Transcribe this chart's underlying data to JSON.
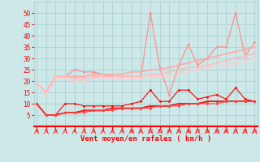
{
  "x": [
    0,
    1,
    2,
    3,
    4,
    5,
    6,
    7,
    8,
    9,
    10,
    11,
    12,
    13,
    14,
    15,
    16,
    17,
    18,
    19,
    20,
    21,
    22,
    23
  ],
  "series": [
    {
      "name": "gust_upper",
      "color": "#ff8888",
      "lw": 0.8,
      "marker": "D",
      "ms": 1.5,
      "values": [
        19,
        15,
        22,
        22,
        25,
        24,
        24,
        23,
        22,
        22,
        22,
        22,
        50,
        26,
        14,
        27,
        36,
        27,
        30,
        35,
        35,
        50,
        31,
        37
      ]
    },
    {
      "name": "trend_line1",
      "color": "#ffaaaa",
      "lw": 1.2,
      "marker": "D",
      "ms": 1.5,
      "values": [
        19,
        15,
        22,
        22,
        22,
        22,
        23,
        23,
        23,
        23,
        24,
        24,
        25,
        25,
        26,
        27,
        28,
        29,
        30,
        31,
        32,
        33,
        34,
        35
      ]
    },
    {
      "name": "trend_line2",
      "color": "#ffbbbb",
      "lw": 1.0,
      "marker": "D",
      "ms": 1.5,
      "values": [
        19,
        15,
        22,
        22,
        21,
        21,
        22,
        22,
        22,
        22,
        22,
        22,
        23,
        23,
        24,
        25,
        26,
        26,
        27,
        28,
        29,
        30,
        31,
        32
      ]
    },
    {
      "name": "trend_lower",
      "color": "#ffcccc",
      "lw": 0.9,
      "marker": "D",
      "ms": 1.5,
      "values": [
        19,
        14,
        21,
        21,
        20,
        20,
        21,
        21,
        21,
        21,
        21,
        21,
        22,
        22,
        22,
        23,
        24,
        25,
        26,
        27,
        27,
        28,
        29,
        30
      ]
    },
    {
      "name": "max_gust_red",
      "color": "#ff0000",
      "lw": 0.8,
      "marker": "D",
      "ms": 1.5,
      "values": [
        10,
        5,
        5,
        10,
        10,
        9,
        9,
        9,
        9,
        9,
        10,
        11,
        16,
        11,
        11,
        16,
        16,
        12,
        13,
        14,
        12,
        17,
        12,
        11
      ]
    },
    {
      "name": "mean_wind1",
      "color": "#cc0000",
      "lw": 1.2,
      "marker": "D",
      "ms": 1.5,
      "values": [
        10,
        5,
        5,
        6,
        6,
        7,
        7,
        7,
        8,
        8,
        8,
        8,
        9,
        9,
        9,
        10,
        10,
        10,
        11,
        11,
        11,
        11,
        11,
        11
      ]
    },
    {
      "name": "mean_wind2",
      "color": "#ff2222",
      "lw": 1.0,
      "marker": "D",
      "ms": 1.5,
      "values": [
        10,
        5,
        5,
        6,
        6,
        7,
        7,
        7,
        8,
        8,
        8,
        8,
        9,
        9,
        9,
        10,
        10,
        10,
        11,
        11,
        11,
        11,
        11,
        11
      ]
    },
    {
      "name": "min_wind",
      "color": "#ff4444",
      "lw": 0.8,
      "marker": "D",
      "ms": 1.5,
      "values": [
        10,
        5,
        5,
        6,
        6,
        6,
        7,
        7,
        7,
        8,
        8,
        8,
        8,
        9,
        9,
        9,
        10,
        10,
        10,
        10,
        11,
        11,
        11,
        11
      ]
    }
  ],
  "xlim": [
    -0.3,
    23.3
  ],
  "ylim": [
    0,
    55
  ],
  "yticks": [
    5,
    10,
    15,
    20,
    25,
    30,
    35,
    40,
    45,
    50
  ],
  "xticks": [
    0,
    1,
    2,
    3,
    4,
    5,
    6,
    7,
    8,
    9,
    10,
    11,
    12,
    13,
    14,
    15,
    16,
    17,
    18,
    19,
    20,
    21,
    22,
    23
  ],
  "xlabel": "Vent moyen/en rafales ( km/h )",
  "bg_color": "#cce8e8",
  "grid_color": "#aacccc",
  "tick_color": "#ff0000",
  "label_color": "#ff0000"
}
